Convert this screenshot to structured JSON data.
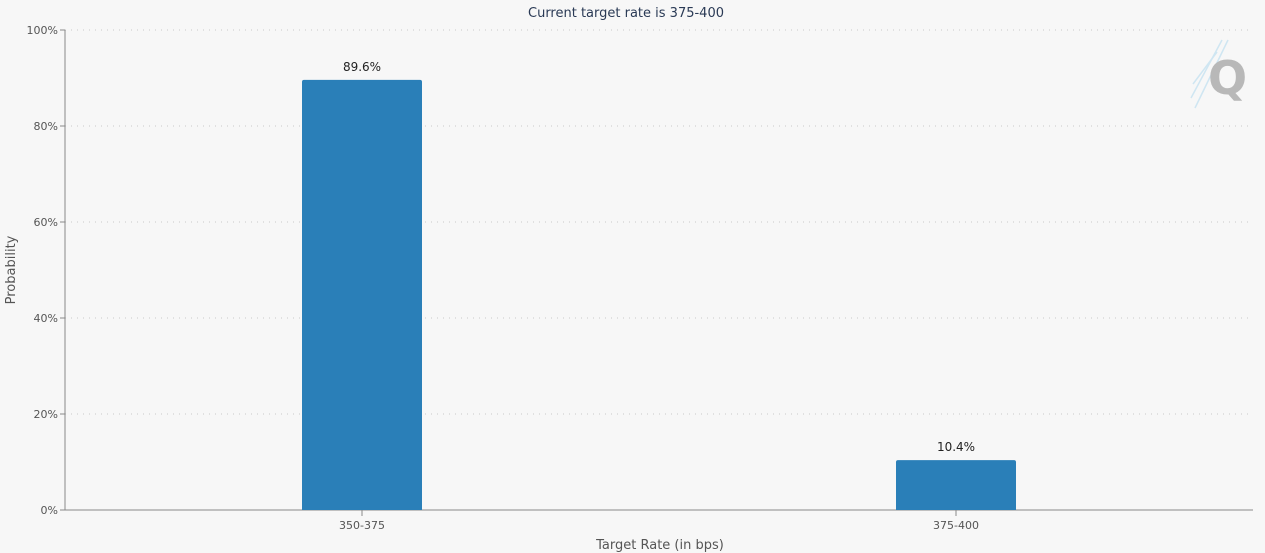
{
  "chart_data": {
    "type": "bar",
    "title": "Current target rate is 375-400",
    "xlabel": "Target Rate (in bps)",
    "ylabel": "Probability",
    "categories": [
      "350-375",
      "375-400"
    ],
    "values": [
      89.6,
      10.4
    ],
    "data_labels": [
      "89.6%",
      "10.4%"
    ],
    "ylim": [
      0,
      100
    ],
    "yticks": [
      0,
      20,
      40,
      60,
      80,
      100
    ],
    "ytick_labels": [
      "0%",
      "20%",
      "40%",
      "60%",
      "80%",
      "100%"
    ],
    "grid": true,
    "legend": "none",
    "bar_color": "#2a7fb8",
    "watermark": "Q"
  }
}
